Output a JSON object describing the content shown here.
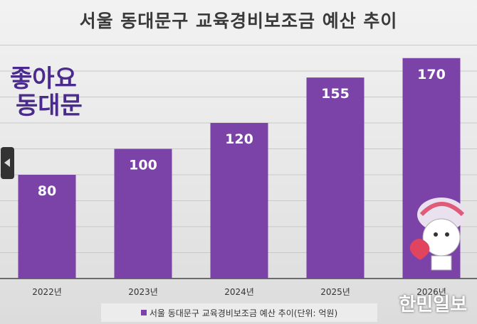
{
  "chart_data": {
    "type": "bar",
    "title": "서울 동대문구 교육경비보조금 예산 추이",
    "categories": [
      "2022년",
      "2023년",
      "2024년",
      "2025년",
      "2026년"
    ],
    "series": [
      {
        "name": "서울 동대문구 교육경비보조금 예산 추이(단위: 억원)",
        "values": [
          80,
          100,
          120,
          155,
          170
        ]
      }
    ],
    "ylim": [
      0,
      180
    ],
    "grid": true,
    "legend": "bottom",
    "bar_color": "#7b42a8",
    "data_labels": true
  },
  "logo_text": [
    "좋아요",
    "동대문"
  ],
  "brand": "한민일보"
}
